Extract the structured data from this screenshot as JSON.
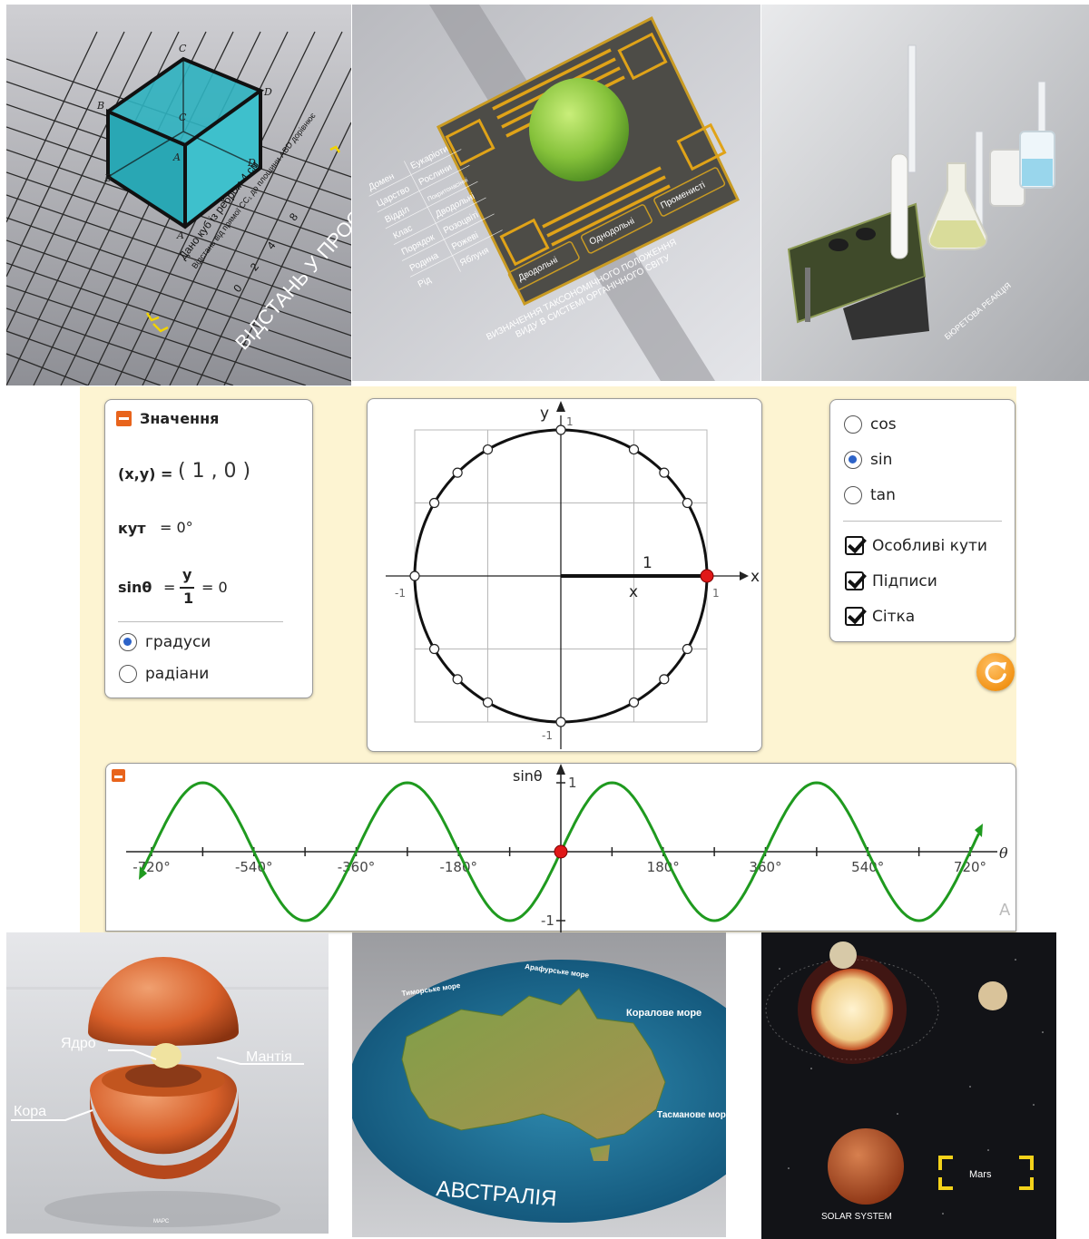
{
  "tiles": {
    "cube": {
      "vertex_labels": [
        "C",
        "B",
        "D",
        "C",
        "A",
        "B",
        "D",
        "A"
      ],
      "task_line1": "Дано куб із ребром 4 см.",
      "task_line2": "Відстань від прямої CC₁ до площини ABD дорівнює",
      "scale_ticks": [
        "0",
        "2",
        "4",
        "8"
      ],
      "title": "ВІДСТАНЬ У ПРОС"
    },
    "taxonomy": {
      "rank_labels": [
        "Домен",
        "Царство",
        "Відділ",
        "Клас",
        "Порядок",
        "Родина",
        "Рід"
      ],
      "rank_values": [
        "Еукаріоти",
        "Рослини",
        "Покритонасінні",
        "Дводольні",
        "Розоцвіті",
        "Рожеві",
        "Яблуня"
      ],
      "buttons": [
        "Дводольні",
        "Однодольні",
        "Променисті"
      ],
      "title_line1": "ВИЗНАЧЕННЯ ТАКСОНОМІЧНОГО ПОЛОЖЕННЯ",
      "title_line2": "ВИДУ В СИСТЕМІ ОРГАНІЧНОГО СВІТУ"
    },
    "lab": {
      "caption": "БЮРЕТОВА РЕАКЦІЯ"
    },
    "planet": {
      "labels": [
        "Ядро",
        "Мантія",
        "Кора"
      ],
      "caption": "МАРС"
    },
    "map": {
      "seas": [
        "Арафурське море",
        "Тиморське море",
        "Коралове море",
        "Тасманове море"
      ],
      "title": "АВСТРАЛІЯ"
    },
    "solar": {
      "target_label": "Mars",
      "caption": "SOLAR SYSTEM"
    }
  },
  "trig": {
    "values_panel": {
      "title": "Значення",
      "xy_label": "(x,y) =",
      "xy_value": "( 1 , 0 )",
      "angle_label": "кут",
      "angle_value": "= 0°",
      "ratio_label": "sinθ",
      "ratio_num": "y",
      "ratio_den": "1",
      "ratio_value": "= 0",
      "units": [
        {
          "label": "градуси",
          "selected": true
        },
        {
          "label": "радіани",
          "selected": false
        }
      ]
    },
    "unit_circle": {
      "axis_x": "x",
      "axis_y": "y",
      "tick_pos": "1",
      "tick_neg": "-1",
      "radius_label": "1",
      "x_label": "x",
      "point": {
        "x": 1,
        "y": 0
      }
    },
    "options_panel": {
      "functions": [
        {
          "label": "cos",
          "selected": false
        },
        {
          "label": "sin",
          "selected": true
        },
        {
          "label": "tan",
          "selected": false
        }
      ],
      "toggles": [
        {
          "label": "Особливі кути",
          "checked": true
        },
        {
          "label": "Підписи",
          "checked": true
        },
        {
          "label": "Сітка",
          "checked": true
        }
      ]
    },
    "graph_label": "A",
    "colors": {
      "curve": "#1f9a1f",
      "point": "#e01818",
      "accent": "#e8641c"
    }
  },
  "chart_data": {
    "type": "line",
    "title": "",
    "xlabel": "θ",
    "ylabel": "sinθ",
    "xlim": [
      -720,
      720
    ],
    "ylim": [
      -1,
      1
    ],
    "x_ticks": [
      "-720°",
      "-540°",
      "-360°",
      "-180°",
      "180°",
      "360°",
      "540°",
      "720°"
    ],
    "y_ticks": [
      "1",
      "-1"
    ],
    "series": [
      {
        "x": [
          -720,
          -630,
          -540,
          -450,
          -360,
          -270,
          -180,
          -90,
          0,
          90,
          180,
          270,
          360,
          450,
          540,
          630,
          720
        ],
        "y": [
          0,
          1,
          0,
          -1,
          0,
          1,
          0,
          -1,
          0,
          1,
          0,
          -1,
          0,
          1,
          0,
          -1,
          0
        ]
      }
    ],
    "highlight": {
      "x": 0,
      "y": 0
    }
  }
}
